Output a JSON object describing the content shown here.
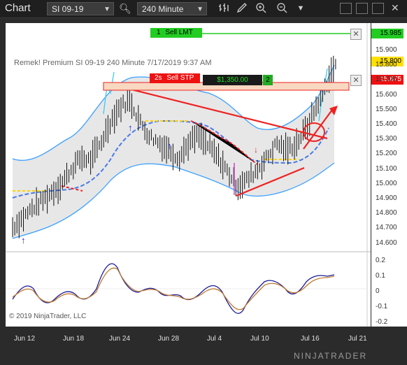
{
  "toolbar": {
    "title": "Chart",
    "instrument": "SI 09-19",
    "interval": "240 Minute",
    "icons": [
      "search-icon",
      "bar-style-icon",
      "draw-tool-icon",
      "zoom-in-icon",
      "zoom-out-icon",
      "dropdown-icon",
      "window-minimize",
      "window-maximize",
      "window-restore",
      "close-icon"
    ]
  },
  "chart": {
    "header": "Remek!  Premium  SI 09-19  240 Minute  7/17/2019 9:37 AM",
    "copyright": "© 2019 NinjaTrader, LLC",
    "brand": "NINJATRADER",
    "orders": {
      "sell_limit": {
        "qty": "1",
        "label": "Sell LMT",
        "price": "15.985"
      },
      "sell_stop": {
        "qty": "2s",
        "label": "Sell STP",
        "price": "15.675"
      },
      "pnl": "$1,350.00",
      "position_qty": "2",
      "last_price": "15.800"
    },
    "price_axis": [
      "15.900",
      "15.800",
      "15.700",
      "15.600",
      "15.500",
      "15.400",
      "15.300",
      "15.200",
      "15.100",
      "15.000",
      "14.900",
      "14.800",
      "14.700",
      "14.600"
    ],
    "osc_axis": [
      "0.2",
      "0.1",
      "0",
      "-0.1",
      "-0.2"
    ],
    "date_axis": [
      "Jun 12",
      "Jun 18",
      "Jun 24",
      "Jun 28",
      "Jul 4",
      "Jul 10",
      "Jul 16",
      "Jul 21"
    ],
    "colors": {
      "sell_limit": "#22cc22",
      "sell_stop": "#ee1111",
      "trend": "#ee2222",
      "band": "#3aa0ff",
      "upper_band": "#0077ee"
    }
  },
  "chart_data": {
    "type": "line",
    "price_range": [
      14.55,
      16.0
    ],
    "osc_range": [
      -0.22,
      0.22
    ],
    "series": [
      {
        "values": [
          14.72,
          14.78,
          14.85,
          14.9,
          14.96,
          15.02,
          15.12,
          15.2,
          15.18,
          15.3,
          15.45,
          15.55,
          15.6,
          15.45,
          15.35,
          15.3,
          15.25,
          15.2,
          15.3,
          15.35,
          15.28,
          15.2,
          15.1,
          15.0,
          15.05,
          15.12,
          15.2,
          15.3,
          15.25,
          15.3,
          15.4,
          15.55,
          15.7,
          15.85
        ]
      }
    ]
  }
}
